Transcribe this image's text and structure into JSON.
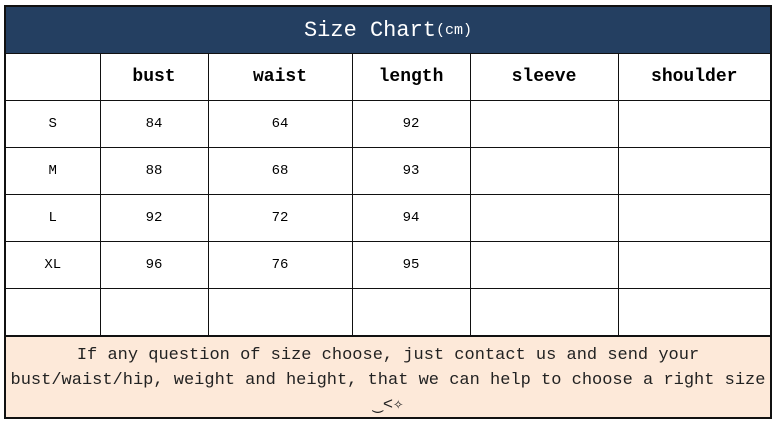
{
  "title": "Size Chart",
  "title_unit": "(cm)",
  "columns": [
    "",
    "bust",
    "waist",
    "length",
    "sleeve",
    "shoulder"
  ],
  "rows": [
    [
      "S",
      "84",
      "64",
      "92",
      "",
      ""
    ],
    [
      "M",
      "88",
      "68",
      "93",
      "",
      ""
    ],
    [
      "L",
      "92",
      "72",
      "94",
      "",
      ""
    ],
    [
      "XL",
      "96",
      "76",
      "95",
      "",
      ""
    ],
    [
      "",
      "",
      "",
      "",
      "",
      ""
    ]
  ],
  "note": {
    "line1": "If any question of size choose, just contact us and send your",
    "line2": "bust/waist/hip, weight and height, that we can help to choose a right size",
    "emoticon": "‿<✧"
  },
  "colors": {
    "header_bg": "#243f61",
    "note_bg": "#fde9d9"
  }
}
